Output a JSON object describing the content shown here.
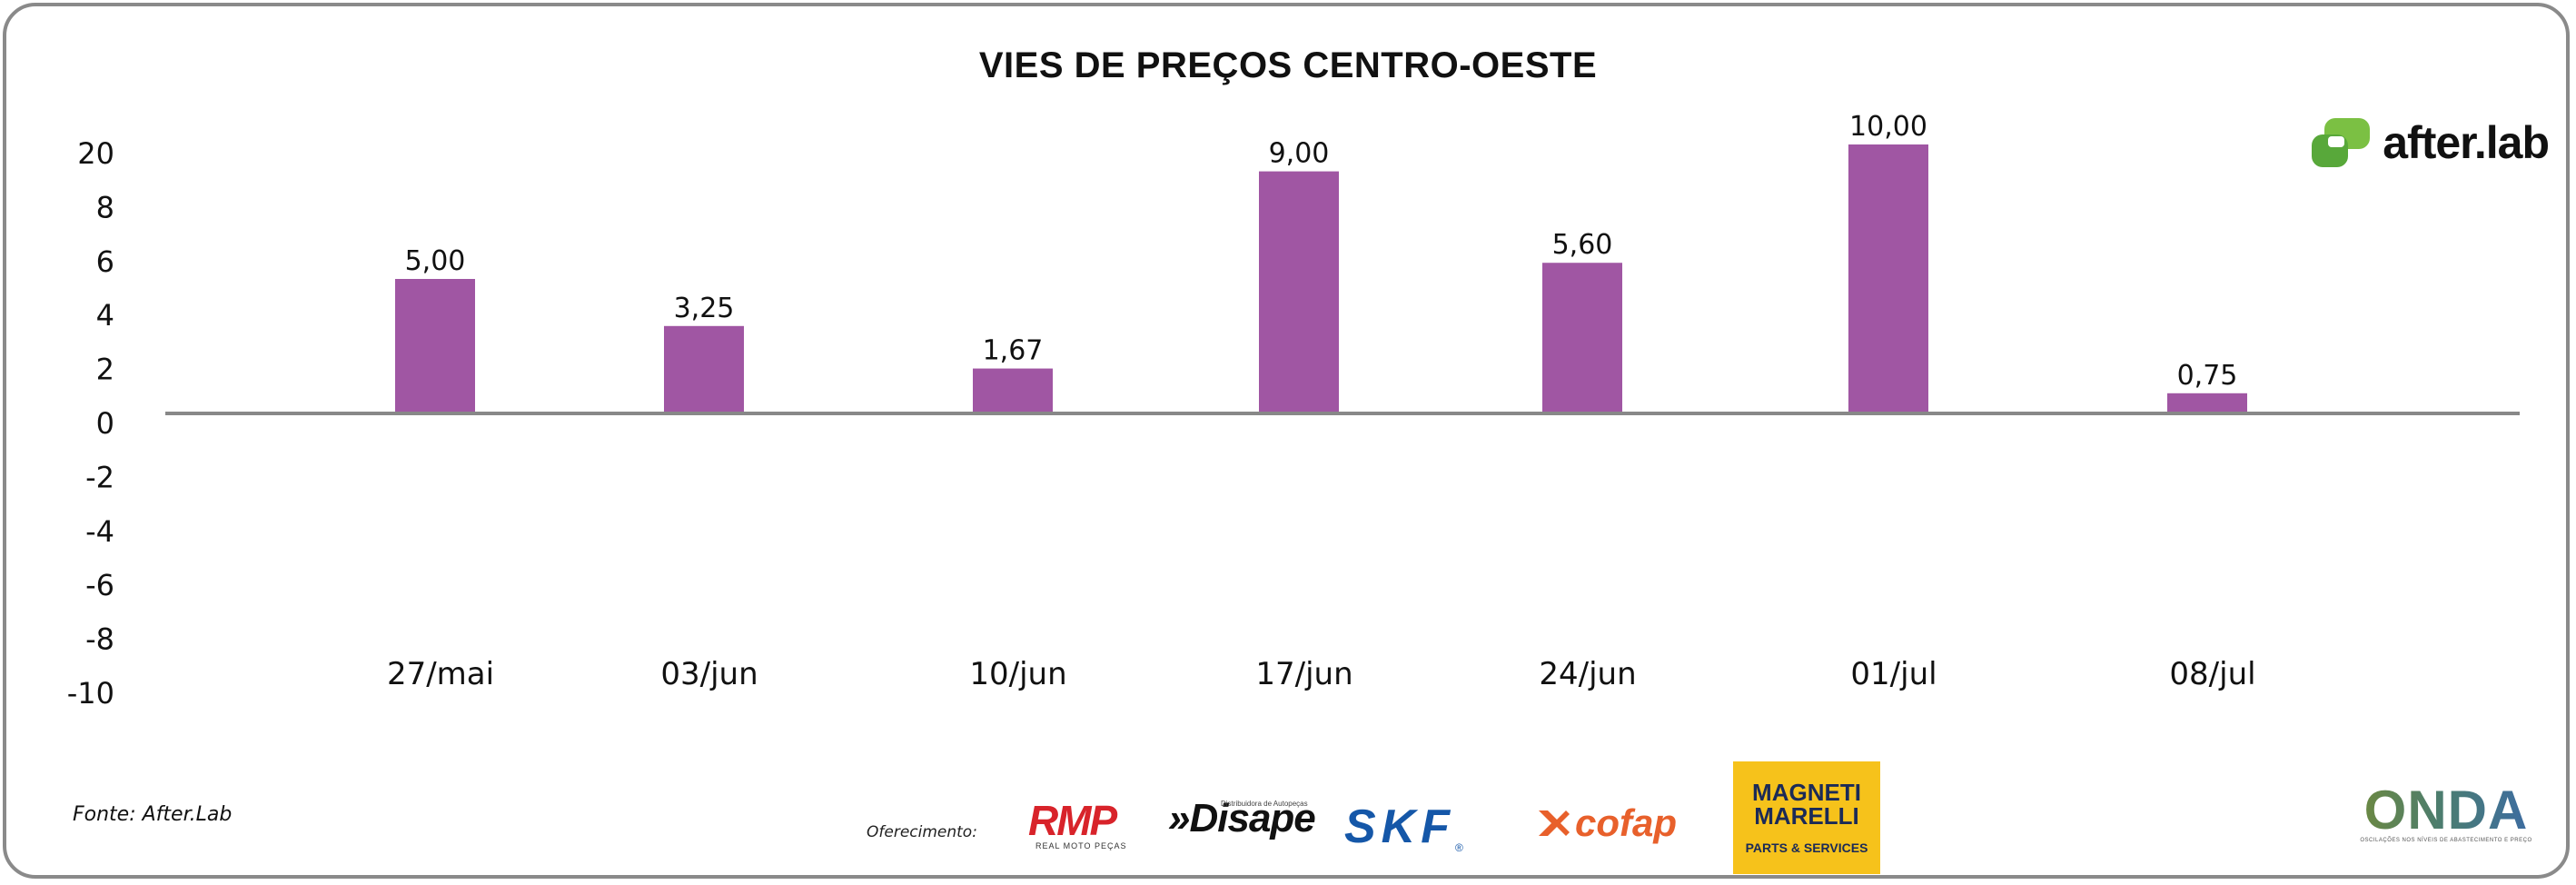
{
  "chart_data": {
    "type": "bar",
    "title": "VIES DE PREÇOS CENTRO-OESTE",
    "categories": [
      "27/mai",
      "03/jun",
      "10/jun",
      "17/jun",
      "24/jun",
      "01/jul",
      "08/jul"
    ],
    "values": [
      5.0,
      3.25,
      1.67,
      9.0,
      5.6,
      10.0,
      0.75
    ],
    "value_labels": [
      "5,00",
      "3,25",
      "1,67",
      "9,00",
      "5,60",
      "10,00",
      "0,75"
    ],
    "yticks": [
      "20",
      "8",
      "6",
      "4",
      "2",
      "0",
      "-2",
      "-4",
      "-6",
      "-8",
      "-10"
    ],
    "ylim": [
      -10,
      20
    ],
    "bar_color": "#a056a3",
    "axis_color": "#888888",
    "grid": false,
    "legend": "none",
    "xlabel": "",
    "ylabel": ""
  },
  "branding": {
    "after_lab": "after.lab",
    "after_lab_icon": "after-lab-logo-icon",
    "brand_green": "#7bc043"
  },
  "footer": {
    "source": "Fonte: After.Lab",
    "sponsor_label": "Oferecimento:",
    "sponsors": {
      "rmp": "RMP",
      "rmp_sub": "REAL MOTO PEÇAS",
      "disape": "»Disape",
      "disape_sub": "Distribuidora de Autopeças",
      "skf": "SKF",
      "cofap": "cofap",
      "magneti": "MAGNETI MARELLI",
      "magneti_sub": "PARTS & SERVICES",
      "onda": "ONDA",
      "onda_sub": "OSCILAÇÕES NOS NÍVEIS DE ABASTECIMENTO E PREÇO"
    }
  }
}
